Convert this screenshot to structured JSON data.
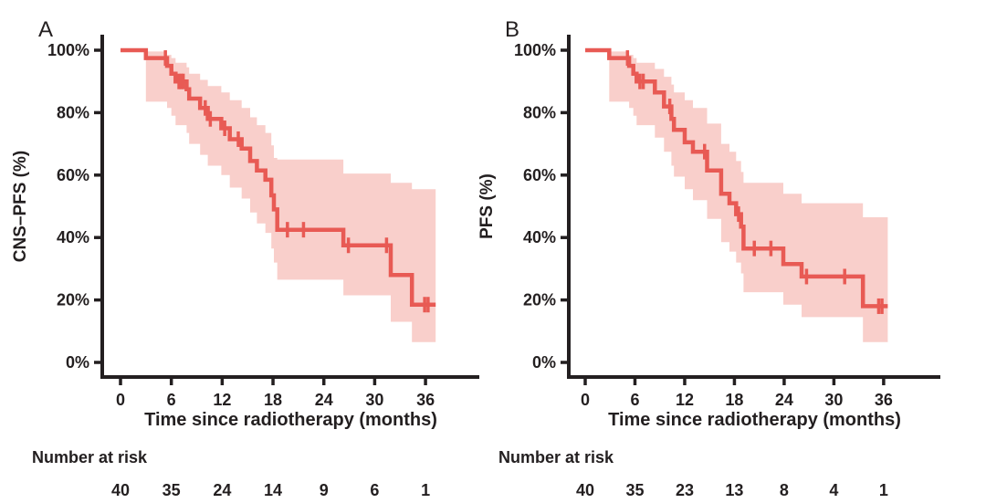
{
  "style": {
    "background": "#ffffff",
    "line_color": "#e85a54",
    "band_color": "#f9cfcb",
    "axis_color": "#231f20",
    "text_color": "#231f20"
  },
  "chart_data": [
    {
      "type": "line",
      "subtype": "kaplan-meier-survival-curve",
      "panel_label": "A",
      "xlabel": "Time since radiotherapy (months)",
      "ylabel": "CNS–PFS (%)",
      "xlim": [
        0,
        42
      ],
      "ylim": [
        0,
        100
      ],
      "xticks": [
        0,
        6,
        12,
        18,
        24,
        30,
        36
      ],
      "ytick_values": [
        0,
        20,
        40,
        60,
        80,
        100
      ],
      "ytick_labels": [
        "0%",
        "20%",
        "40%",
        "60%",
        "80%",
        "100%"
      ],
      "grid": false,
      "legend": "none",
      "series": [
        {
          "name": "CNS-PFS",
          "steps_time_pct": [
            [
              0,
              100
            ],
            [
              3,
              97.5
            ],
            [
              5.5,
              95
            ],
            [
              6,
              92.5
            ],
            [
              6.5,
              90
            ],
            [
              7.8,
              87.5
            ],
            [
              8.1,
              84.5
            ],
            [
              9.4,
              81.5
            ],
            [
              10.3,
              78
            ],
            [
              11.9,
              75
            ],
            [
              12.9,
              71.5
            ],
            [
              14.3,
              68.5
            ],
            [
              15.3,
              64.5
            ],
            [
              16.1,
              61.5
            ],
            [
              17.1,
              58.5
            ],
            [
              17.8,
              53.5
            ],
            [
              18.1,
              49
            ],
            [
              18.5,
              42.5
            ],
            [
              26.3,
              37.5
            ],
            [
              31.9,
              28
            ],
            [
              34.4,
              18.5
            ]
          ],
          "end_time": 37.2,
          "censor_marks_time_pct": [
            [
              5.3,
              97.5
            ],
            [
              6.9,
              90
            ],
            [
              7.15,
              90
            ],
            [
              7.4,
              90
            ],
            [
              10,
              81.5
            ],
            [
              10.6,
              78
            ],
            [
              12.3,
              75
            ],
            [
              13.9,
              71.5
            ],
            [
              19.7,
              42.5
            ],
            [
              21.6,
              42.5
            ],
            [
              26.9,
              37.5
            ],
            [
              31.4,
              37.5
            ],
            [
              35.9,
              18.5
            ],
            [
              36.3,
              18.5
            ]
          ],
          "confidence_band_time_lower_upper": [
            [
              3,
              83.5,
              99.6
            ],
            [
              5.5,
              81.5,
              98.5
            ],
            [
              6,
              79,
              97.5
            ],
            [
              6.5,
              76,
              96
            ],
            [
              7.8,
              73.5,
              94.5
            ],
            [
              8.1,
              70,
              92.5
            ],
            [
              9.4,
              66.5,
              90.5
            ],
            [
              10.3,
              63,
              88.5
            ],
            [
              11.9,
              60,
              86.5
            ],
            [
              12.9,
              56,
              84
            ],
            [
              14.3,
              52.5,
              81.5
            ],
            [
              15.3,
              48,
              78.5
            ],
            [
              16.1,
              44.5,
              76
            ],
            [
              17.1,
              41.5,
              73.5
            ],
            [
              17.8,
              36.5,
              69.5
            ],
            [
              18.1,
              32,
              65.5
            ],
            [
              18.5,
              26.5,
              65
            ],
            [
              26.3,
              21.5,
              60.5
            ],
            [
              31.9,
              13,
              57.5
            ],
            [
              34.4,
              6.5,
              55.5
            ]
          ]
        }
      ],
      "number_at_risk": {
        "label": "Number at risk",
        "times": [
          0,
          6,
          12,
          18,
          24,
          30,
          36
        ],
        "counts": [
          40,
          35,
          24,
          14,
          9,
          6,
          1
        ]
      }
    },
    {
      "type": "line",
      "subtype": "kaplan-meier-survival-curve",
      "panel_label": "B",
      "xlabel": "Time since radiotherapy (months)",
      "ylabel": "PFS (%)",
      "xlim": [
        0,
        42
      ],
      "ylim": [
        0,
        100
      ],
      "xticks": [
        0,
        6,
        12,
        18,
        24,
        30,
        36
      ],
      "ytick_values": [
        0,
        20,
        40,
        60,
        80,
        100
      ],
      "ytick_labels": [
        "0%",
        "20%",
        "40%",
        "60%",
        "80%",
        "100%"
      ],
      "grid": false,
      "legend": "none",
      "series": [
        {
          "name": "PFS",
          "steps_time_pct": [
            [
              0,
              100
            ],
            [
              2.9,
              97.5
            ],
            [
              5.3,
              95
            ],
            [
              5.8,
              92.5
            ],
            [
              6.2,
              90
            ],
            [
              8.4,
              86.5
            ],
            [
              9.5,
              82
            ],
            [
              10.4,
              78
            ],
            [
              10.7,
              74.5
            ],
            [
              12,
              70.5
            ],
            [
              13,
              67.5
            ],
            [
              14.7,
              61.5
            ],
            [
              16.4,
              54
            ],
            [
              17.4,
              51
            ],
            [
              18.2,
              47.5
            ],
            [
              18.8,
              43.5
            ],
            [
              19.1,
              36.5
            ],
            [
              23.9,
              31.5
            ],
            [
              26.1,
              27.5
            ],
            [
              33.5,
              18
            ]
          ],
          "end_time": 36.5,
          "censor_marks_time_pct": [
            [
              5.1,
              97.5
            ],
            [
              6.6,
              90
            ],
            [
              7,
              90
            ],
            [
              10.2,
              82
            ],
            [
              14.4,
              67.5
            ],
            [
              18.5,
              47.5
            ],
            [
              20.4,
              36.5
            ],
            [
              22.4,
              36.5
            ],
            [
              26.7,
              27.5
            ],
            [
              31.3,
              27.5
            ],
            [
              35.4,
              18
            ],
            [
              35.8,
              18
            ]
          ],
          "confidence_band_time_lower_upper": [
            [
              2.9,
              83.5,
              99.6
            ],
            [
              5.3,
              81.5,
              98.5
            ],
            [
              5.8,
              79,
              97.5
            ],
            [
              6.2,
              76,
              96
            ],
            [
              8.4,
              72,
              94
            ],
            [
              9.5,
              67.5,
              91.5
            ],
            [
              10.4,
              63,
              89
            ],
            [
              10.7,
              59.5,
              86.5
            ],
            [
              12,
              55.5,
              84
            ],
            [
              13,
              52,
              81.5
            ],
            [
              14.7,
              46,
              76.5
            ],
            [
              16.4,
              38.5,
              70
            ],
            [
              17.4,
              35.5,
              67.5
            ],
            [
              18.2,
              32,
              64.5
            ],
            [
              18.8,
              28.5,
              61
            ],
            [
              19.1,
              22.5,
              57.5
            ],
            [
              23.9,
              18.5,
              54
            ],
            [
              26.1,
              14.5,
              51
            ],
            [
              33.5,
              6.5,
              46.5
            ]
          ]
        }
      ],
      "number_at_risk": {
        "label": "Number at risk",
        "times": [
          0,
          6,
          12,
          18,
          24,
          30,
          36
        ],
        "counts": [
          40,
          35,
          23,
          13,
          8,
          4,
          1
        ]
      }
    }
  ]
}
